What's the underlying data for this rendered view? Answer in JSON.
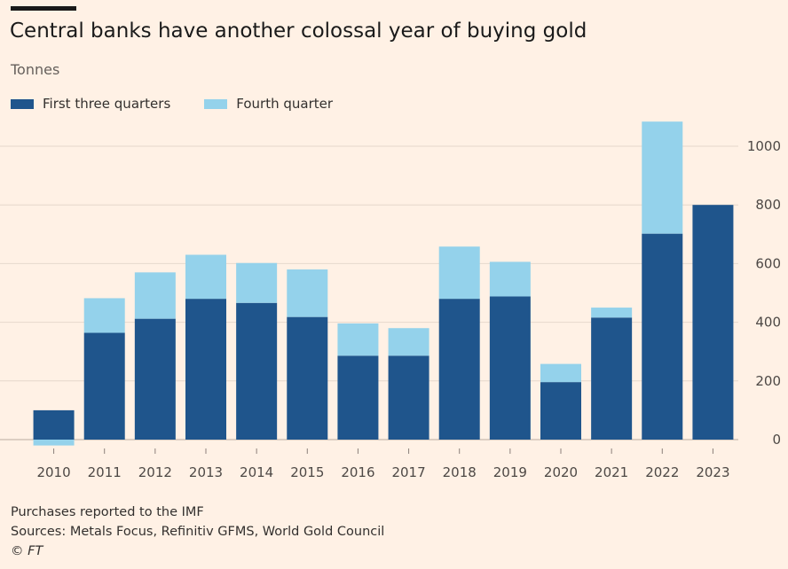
{
  "title": "Central banks have another colossal year of buying gold",
  "subtitle": "Tonnes",
  "legend": {
    "series1": "First three quarters",
    "series2": "Fourth quarter"
  },
  "footer": {
    "note": "Purchases reported to the IMF",
    "sources": "Sources: Metals Focus, Refinitiv GFMS, World Gold Council",
    "credit": "© FT"
  },
  "colors": {
    "series1": "#1f558c",
    "series2": "#94d2eb",
    "grid": "#e6d8cc",
    "background": "#fff1e5"
  },
  "chart_data": {
    "type": "bar",
    "stacked": true,
    "categories": [
      "2010",
      "2011",
      "2012",
      "2013",
      "2014",
      "2015",
      "2016",
      "2017",
      "2018",
      "2019",
      "2020",
      "2021",
      "2022",
      "2023"
    ],
    "series": [
      {
        "name": "First three quarters",
        "values": [
          100,
          364,
          412,
          480,
          466,
          418,
          286,
          286,
          480,
          488,
          196,
          416,
          702,
          800
        ]
      },
      {
        "name": "Fourth quarter",
        "values": [
          -20,
          118,
          158,
          150,
          136,
          162,
          110,
          94,
          178,
          118,
          62,
          34,
          382,
          null
        ]
      }
    ],
    "ylabel": "Tonnes",
    "ylim": [
      0,
      1100
    ],
    "yticks": [
      0,
      200,
      400,
      600,
      800,
      1000
    ],
    "grid": true,
    "legend_position": "top-left",
    "axis_position": "right"
  }
}
